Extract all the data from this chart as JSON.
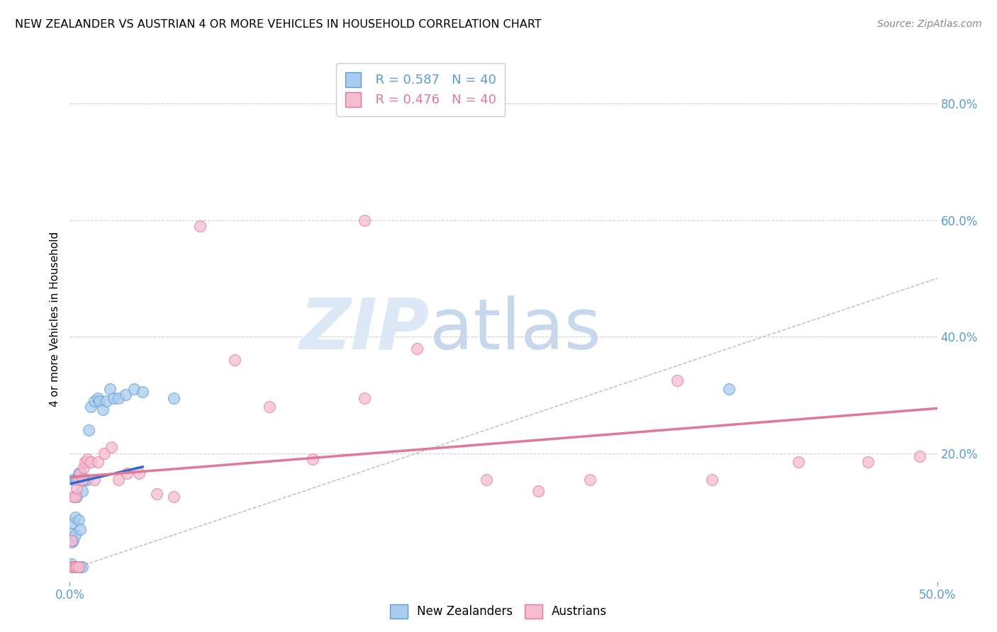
{
  "title": "NEW ZEALANDER VS AUSTRIAN 4 OR MORE VEHICLES IN HOUSEHOLD CORRELATION CHART",
  "source": "Source: ZipAtlas.com",
  "tick_color": "#5b9bd5",
  "ylabel": "4 or more Vehicles in Household",
  "xlim": [
    0.0,
    0.5
  ],
  "ylim": [
    -0.02,
    0.88
  ],
  "x_tick_positions": [
    0.0,
    0.5
  ],
  "x_tick_labels": [
    "0.0%",
    "50.0%"
  ],
  "y_tick_positions": [
    0.0,
    0.2,
    0.4,
    0.6,
    0.8
  ],
  "y_tick_labels": [
    "",
    "20.0%",
    "40.0%",
    "60.0%",
    "80.0%"
  ],
  "background_color": "#ffffff",
  "grid_color": "#d0d0d0",
  "nz_color": "#aaccee",
  "nz_edge_color": "#5b9bd5",
  "au_color": "#f5bcd0",
  "au_edge_color": "#e07898",
  "nz_R": 0.587,
  "nz_N": 40,
  "au_R": 0.476,
  "au_N": 40,
  "nz_line_color": "#3366cc",
  "au_line_color": "#e07898",
  "diag_line_color": "#bbbbbb",
  "nz_scatter_x": [
    0.001,
    0.001,
    0.001,
    0.002,
    0.002,
    0.002,
    0.002,
    0.003,
    0.003,
    0.003,
    0.003,
    0.004,
    0.004,
    0.004,
    0.005,
    0.005,
    0.005,
    0.006,
    0.006,
    0.006,
    0.007,
    0.007,
    0.008,
    0.009,
    0.01,
    0.011,
    0.012,
    0.014,
    0.016,
    0.017,
    0.019,
    0.021,
    0.023,
    0.025,
    0.028,
    0.032,
    0.037,
    0.042,
    0.06,
    0.38
  ],
  "nz_scatter_y": [
    0.01,
    0.048,
    0.062,
    0.005,
    0.05,
    0.08,
    0.155,
    0.005,
    0.06,
    0.09,
    0.155,
    0.005,
    0.125,
    0.155,
    0.005,
    0.085,
    0.165,
    0.005,
    0.07,
    0.165,
    0.005,
    0.135,
    0.155,
    0.155,
    0.155,
    0.24,
    0.28,
    0.29,
    0.295,
    0.29,
    0.275,
    0.29,
    0.31,
    0.295,
    0.295,
    0.3,
    0.31,
    0.305,
    0.295,
    0.31
  ],
  "au_scatter_x": [
    0.001,
    0.001,
    0.002,
    0.002,
    0.003,
    0.003,
    0.004,
    0.004,
    0.005,
    0.005,
    0.006,
    0.007,
    0.008,
    0.009,
    0.01,
    0.012,
    0.014,
    0.016,
    0.02,
    0.024,
    0.028,
    0.033,
    0.04,
    0.05,
    0.06,
    0.075,
    0.095,
    0.115,
    0.14,
    0.17,
    0.2,
    0.24,
    0.27,
    0.17,
    0.3,
    0.35,
    0.37,
    0.42,
    0.46,
    0.49
  ],
  "au_scatter_y": [
    0.005,
    0.05,
    0.005,
    0.125,
    0.005,
    0.125,
    0.005,
    0.14,
    0.005,
    0.155,
    0.165,
    0.155,
    0.175,
    0.185,
    0.19,
    0.185,
    0.155,
    0.185,
    0.2,
    0.21,
    0.155,
    0.165,
    0.165,
    0.13,
    0.125,
    0.59,
    0.36,
    0.28,
    0.19,
    0.295,
    0.38,
    0.155,
    0.135,
    0.6,
    0.155,
    0.325,
    0.155,
    0.185,
    0.185,
    0.195
  ],
  "watermark_zip": "ZIP",
  "watermark_atlas": "atlas",
  "watermark_color": "#dce8f5"
}
